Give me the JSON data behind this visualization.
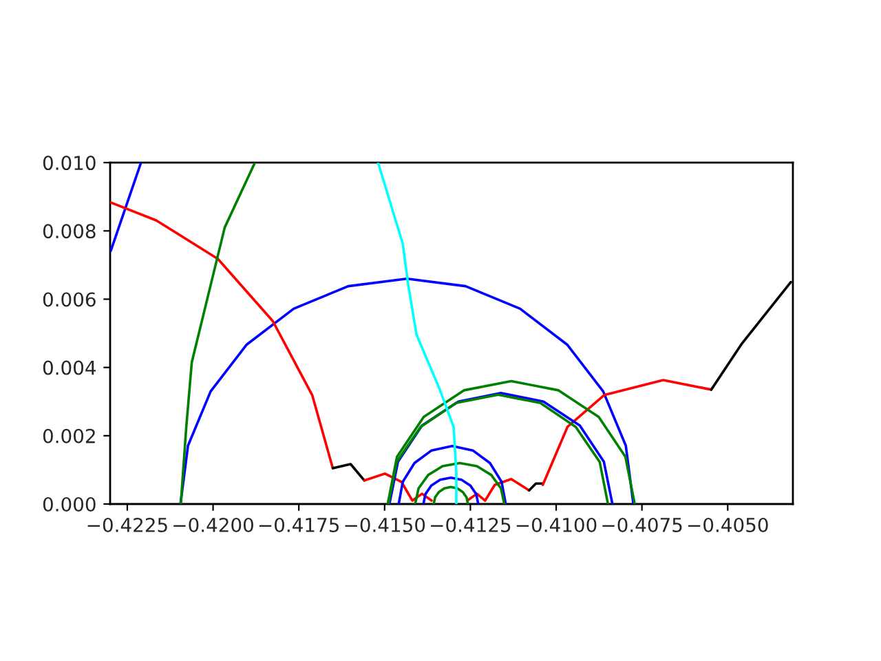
{
  "chart_data": {
    "type": "line",
    "marker": "none",
    "line_style": "solid",
    "grid": false,
    "legend": false,
    "xlim": [
      -0.423,
      -0.4031
    ],
    "ylim": [
      0,
      0.01
    ],
    "xticks": [
      {
        "value": -0.4225,
        "label": "−0.4225"
      },
      {
        "value": -0.42,
        "label": "−0.4200"
      },
      {
        "value": -0.4175,
        "label": "−0.4175"
      },
      {
        "value": -0.415,
        "label": "−0.4150"
      },
      {
        "value": -0.4125,
        "label": "−0.4125"
      },
      {
        "value": -0.41,
        "label": "−0.4100"
      },
      {
        "value": -0.4075,
        "label": "−0.4075"
      },
      {
        "value": -0.405,
        "label": "−0.4050"
      }
    ],
    "yticks": [
      {
        "value": 0,
        "label": "0.000"
      },
      {
        "value": 0.002,
        "label": "0.002"
      },
      {
        "value": 0.004,
        "label": "0.004"
      },
      {
        "value": 0.006,
        "label": "0.006"
      },
      {
        "value": 0.008,
        "label": "0.008"
      },
      {
        "value": 0.01,
        "label": "0.010"
      }
    ],
    "series": [
      {
        "color": "#0000ff",
        "x": [
          -0.42095,
          -0.42073,
          -0.42007,
          -0.41902,
          -0.41765,
          -0.41606,
          -0.41435,
          -0.41264,
          -0.41105,
          -0.40968,
          -0.40863,
          -0.40797,
          -0.40775
        ],
        "values": [
          0,
          0.00171,
          0.0033,
          0.00467,
          0.00572,
          0.00638,
          0.0066,
          0.00638,
          0.00572,
          0.00467,
          0.0033,
          0.00171,
          0
        ]
      },
      {
        "color": "#0000ff",
        "x": [
          -0.42298,
          -0.4221
        ],
        "values": [
          0.00742,
          0.01
        ]
      },
      {
        "color": "#ff0000",
        "x": [
          -0.42298,
          -0.42166,
          -0.41986,
          -0.41826,
          -0.41711,
          -0.41651
        ],
        "values": [
          0.00883,
          0.00831,
          0.00718,
          0.00536,
          0.00319,
          0.00105
        ]
      },
      {
        "color": "#000000",
        "x": [
          -0.41651,
          -0.41599,
          -0.41559
        ],
        "values": [
          0.00105,
          0.00117,
          0.00069
        ]
      },
      {
        "color": "#ff0000",
        "x": [
          -0.41559,
          -0.41499,
          -0.41451,
          -0.41419,
          -0.41391,
          -0.41363
        ],
        "values": [
          0.00069,
          0.00089,
          0.00065,
          0.0001,
          0.0003,
          0.0001
        ]
      },
      {
        "color": "#ff0000",
        "x": [
          -0.41259,
          -0.41231,
          -0.41207,
          -0.41179,
          -0.41131,
          -0.41079
        ],
        "values": [
          0.0001,
          0.0003,
          0.0001,
          0.00056,
          0.00073,
          0.0004
        ]
      },
      {
        "color": "#000000",
        "x": [
          -0.41079,
          -0.41059,
          -0.41039
        ],
        "values": [
          0.0004,
          0.0006,
          0.0006
        ]
      },
      {
        "color": "#ff0000",
        "x": [
          -0.41039,
          -0.40967,
          -0.4086,
          -0.40688,
          -0.40548
        ],
        "values": [
          0.00056,
          0.00226,
          0.00319,
          0.00363,
          0.00335
        ]
      },
      {
        "color": "#000000",
        "x": [
          -0.40548,
          -0.4046,
          -0.40316
        ],
        "values": [
          0.00335,
          0.00468,
          0.0065
        ]
      },
      {
        "color": "#008000",
        "x": [
          -0.42094,
          -0.42078,
          -0.42062,
          -0.41966,
          -0.41878
        ],
        "values": [
          0,
          0.00226,
          0.00415,
          0.0081,
          0.01
        ]
      },
      {
        "color": "#008000",
        "x": [
          -0.41491,
          -0.41464,
          -0.41386,
          -0.41269,
          -0.41131,
          -0.40993,
          -0.40876,
          -0.40798,
          -0.40771
        ],
        "values": [
          0,
          0.00138,
          0.00255,
          0.00333,
          0.0036,
          0.00333,
          0.00255,
          0.00138,
          0
        ]
      },
      {
        "color": "#0000ff",
        "x": [
          -0.41486,
          -0.41461,
          -0.41391,
          -0.41285,
          -0.41161,
          -0.41037,
          -0.40931,
          -0.40861,
          -0.40836
        ],
        "values": [
          0,
          0.00124,
          0.0023,
          0.003,
          0.00325,
          0.003,
          0.0023,
          0.00124,
          0
        ]
      },
      {
        "color": "#008000",
        "x": [
          -0.41489,
          -0.41465,
          -0.41395,
          -0.41292,
          -0.41169,
          -0.41046,
          -0.40943,
          -0.40873,
          -0.40849
        ],
        "values": [
          0,
          0.00123,
          0.00226,
          0.00296,
          0.0032,
          0.00296,
          0.00226,
          0.00123,
          0
        ]
      },
      {
        "color": "#0000ff",
        "x": [
          -0.41459,
          -0.41447,
          -0.41413,
          -0.41363,
          -0.41303,
          -0.41243,
          -0.41193,
          -0.41159,
          -0.41147
        ],
        "values": [
          0,
          0.00065,
          0.0012,
          0.00157,
          0.0017,
          0.00157,
          0.0012,
          0.00065,
          0
        ]
      },
      {
        "color": "#008000",
        "x": [
          -0.41411,
          -0.41401,
          -0.41373,
          -0.41331,
          -0.41281,
          -0.41231,
          -0.41189,
          -0.41161,
          -0.41151
        ],
        "values": [
          0,
          0.00046,
          0.00085,
          0.00111,
          0.0012,
          0.00111,
          0.00085,
          0.00046,
          0
        ]
      },
      {
        "color": "#0000ff",
        "x": [
          -0.41387,
          -0.41381,
          -0.41364,
          -0.41338,
          -0.41307,
          -0.41276,
          -0.4125,
          -0.41233,
          -0.41227
        ],
        "values": [
          0,
          0.00029,
          0.00054,
          0.00071,
          0.00077,
          0.00071,
          0.00054,
          0.00029,
          0
        ]
      },
      {
        "color": "#008000",
        "x": [
          -0.41357,
          -0.41353,
          -0.41342,
          -0.41326,
          -0.41307,
          -0.41288,
          -0.41272,
          -0.41261,
          -0.41257
        ],
        "values": [
          0,
          0.00019,
          0.00035,
          0.00046,
          0.0005,
          0.00046,
          0.00035,
          0.00019,
          0
        ]
      },
      {
        "color": "#00ffff",
        "x": [
          -0.41519,
          -0.41447,
          -0.41431,
          -0.41407,
          -0.41339,
          -0.41299,
          -0.41291,
          -0.41291
        ],
        "values": [
          0.01,
          0.00762,
          0.00641,
          0.00496,
          0.00335,
          0.00226,
          0.00093,
          0
        ]
      }
    ]
  }
}
